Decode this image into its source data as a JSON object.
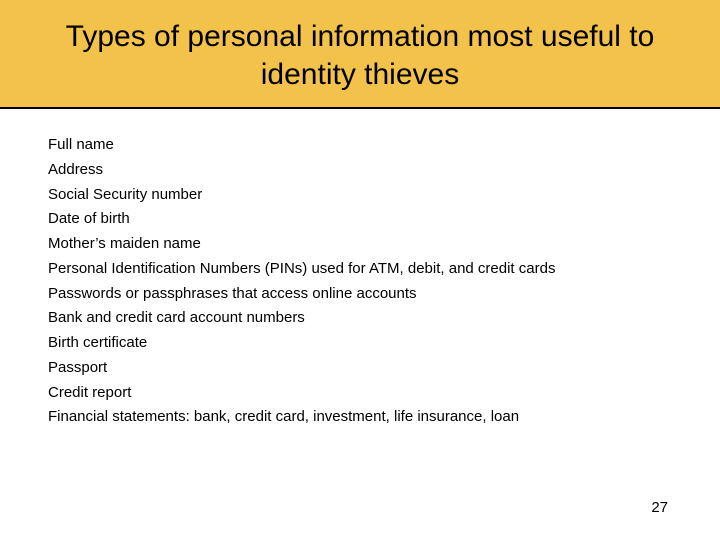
{
  "colors": {
    "banner_bg": "#f2c24a",
    "banner_border": "#000000",
    "page_bg": "#ffffff",
    "text": "#000000"
  },
  "typography": {
    "title_fontsize": 30,
    "body_fontsize": 15,
    "font_family": "Arial, sans-serif"
  },
  "title": "Types of personal information most useful to identity thieves",
  "items": [
    "Full name",
    "Address",
    "Social Security number",
    "Date of birth",
    "Mother’s maiden name",
    "Personal Identification Numbers (PINs) used for ATM, debit, and credit cards",
    "Passwords or passphrases that access online accounts",
    "Bank and credit card account numbers",
    "Birth certificate",
    "Passport",
    "Credit report",
    "Financial statements: bank, credit card, investment, life insurance, loan"
  ],
  "page_number": "27"
}
